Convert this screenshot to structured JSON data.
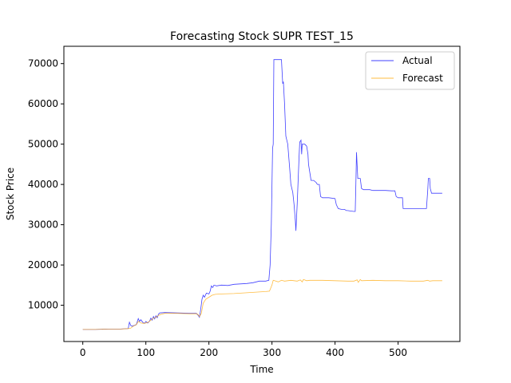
{
  "chart_data": {
    "type": "line",
    "title": "Forecasting Stock SUPR TEST_15",
    "xlabel": "Time",
    "ylabel": "Stock Price",
    "xlim": [
      -30,
      598
    ],
    "ylim": [
      1000,
      74300
    ],
    "xticks": [
      0,
      100,
      200,
      300,
      400,
      500
    ],
    "yticks": [
      10000,
      20000,
      30000,
      40000,
      50000,
      60000,
      70000
    ],
    "grid": false,
    "legend_position": "top-right",
    "series": [
      {
        "name": "Actual",
        "color": "#0000ff",
        "points": [
          [
            0,
            4000
          ],
          [
            20,
            4000
          ],
          [
            40,
            4100
          ],
          [
            60,
            4100
          ],
          [
            72,
            4200
          ],
          [
            74,
            5800
          ],
          [
            76,
            5000
          ],
          [
            78,
            4800
          ],
          [
            82,
            5000
          ],
          [
            85,
            5200
          ],
          [
            88,
            6700
          ],
          [
            90,
            6000
          ],
          [
            92,
            6400
          ],
          [
            95,
            5800
          ],
          [
            98,
            5500
          ],
          [
            100,
            6000
          ],
          [
            103,
            5600
          ],
          [
            106,
            6100
          ],
          [
            108,
            6800
          ],
          [
            110,
            6300
          ],
          [
            112,
            7200
          ],
          [
            114,
            6600
          ],
          [
            116,
            7400
          ],
          [
            118,
            6900
          ],
          [
            120,
            7800
          ],
          [
            122,
            8100
          ],
          [
            130,
            8200
          ],
          [
            150,
            8100
          ],
          [
            170,
            8000
          ],
          [
            180,
            8000
          ],
          [
            183,
            7500
          ],
          [
            185,
            7000
          ],
          [
            187,
            9000
          ],
          [
            189,
            11500
          ],
          [
            191,
            12500
          ],
          [
            193,
            12000
          ],
          [
            196,
            13000
          ],
          [
            200,
            12800
          ],
          [
            202,
            13500
          ],
          [
            204,
            14800
          ],
          [
            206,
            14400
          ],
          [
            208,
            15000
          ],
          [
            212,
            14800
          ],
          [
            220,
            15000
          ],
          [
            230,
            14900
          ],
          [
            240,
            15200
          ],
          [
            250,
            15300
          ],
          [
            260,
            15400
          ],
          [
            270,
            15600
          ],
          [
            280,
            16000
          ],
          [
            290,
            16000
          ],
          [
            295,
            16200
          ],
          [
            297,
            20000
          ],
          [
            299,
            30000
          ],
          [
            301,
            49000
          ],
          [
            302,
            50000
          ],
          [
            303,
            71000
          ],
          [
            305,
            71000
          ],
          [
            310,
            71000
          ],
          [
            315,
            71000
          ],
          [
            317,
            65000
          ],
          [
            318,
            65500
          ],
          [
            320,
            60000
          ],
          [
            322,
            52000
          ],
          [
            325,
            50000
          ],
          [
            328,
            44000
          ],
          [
            330,
            40000
          ],
          [
            333,
            38000
          ],
          [
            335,
            35000
          ],
          [
            337,
            31000
          ],
          [
            338,
            28500
          ],
          [
            340,
            35000
          ],
          [
            342,
            43000
          ],
          [
            343,
            47000
          ],
          [
            344,
            50500
          ],
          [
            346,
            51000
          ],
          [
            347,
            47500
          ],
          [
            348,
            50000
          ],
          [
            352,
            50000
          ],
          [
            355,
            49500
          ],
          [
            357,
            47500
          ],
          [
            358,
            45000
          ],
          [
            360,
            43000
          ],
          [
            362,
            41000
          ],
          [
            366,
            41000
          ],
          [
            370,
            40500
          ],
          [
            372,
            40000
          ],
          [
            375,
            40000
          ],
          [
            377,
            37000
          ],
          [
            380,
            36700
          ],
          [
            390,
            36700
          ],
          [
            400,
            36500
          ],
          [
            402,
            35000
          ],
          [
            405,
            34000
          ],
          [
            410,
            33800
          ],
          [
            415,
            33800
          ],
          [
            418,
            33500
          ],
          [
            420,
            33500
          ],
          [
            425,
            33400
          ],
          [
            430,
            33300
          ],
          [
            432,
            33300
          ],
          [
            433,
            40000
          ],
          [
            434,
            48000
          ],
          [
            436,
            41500
          ],
          [
            440,
            41500
          ],
          [
            442,
            39000
          ],
          [
            445,
            38700
          ],
          [
            455,
            38700
          ],
          [
            460,
            38500
          ],
          [
            470,
            38500
          ],
          [
            480,
            38500
          ],
          [
            490,
            38400
          ],
          [
            495,
            38400
          ],
          [
            497,
            37000
          ],
          [
            500,
            36700
          ],
          [
            507,
            36700
          ],
          [
            508,
            34000
          ],
          [
            520,
            34000
          ],
          [
            530,
            34000
          ],
          [
            540,
            34000
          ],
          [
            545,
            34000
          ],
          [
            547,
            38500
          ],
          [
            548,
            41500
          ],
          [
            550,
            41500
          ],
          [
            551,
            39000
          ],
          [
            553,
            37800
          ],
          [
            560,
            37800
          ],
          [
            570,
            37800
          ]
        ]
      },
      {
        "name": "Forecast",
        "color": "#ffa500",
        "points": [
          [
            0,
            4000
          ],
          [
            20,
            4000
          ],
          [
            40,
            4100
          ],
          [
            60,
            4100
          ],
          [
            72,
            4200
          ],
          [
            76,
            4300
          ],
          [
            80,
            4800
          ],
          [
            85,
            5200
          ],
          [
            88,
            6000
          ],
          [
            92,
            5600
          ],
          [
            96,
            5500
          ],
          [
            100,
            5600
          ],
          [
            104,
            5800
          ],
          [
            108,
            6300
          ],
          [
            112,
            6800
          ],
          [
            116,
            7000
          ],
          [
            120,
            7500
          ],
          [
            125,
            7800
          ],
          [
            130,
            8000
          ],
          [
            150,
            8000
          ],
          [
            170,
            7900
          ],
          [
            180,
            7900
          ],
          [
            183,
            7700
          ],
          [
            185,
            7200
          ],
          [
            188,
            8000
          ],
          [
            191,
            10500
          ],
          [
            195,
            11500
          ],
          [
            200,
            12000
          ],
          [
            205,
            12500
          ],
          [
            210,
            12700
          ],
          [
            220,
            12800
          ],
          [
            240,
            12900
          ],
          [
            250,
            13000
          ],
          [
            260,
            13100
          ],
          [
            270,
            13200
          ],
          [
            280,
            13300
          ],
          [
            290,
            13400
          ],
          [
            296,
            13500
          ],
          [
            300,
            15000
          ],
          [
            302,
            16200
          ],
          [
            306,
            16000
          ],
          [
            310,
            15800
          ],
          [
            315,
            16200
          ],
          [
            320,
            16000
          ],
          [
            330,
            16200
          ],
          [
            340,
            16000
          ],
          [
            345,
            16300
          ],
          [
            348,
            15800
          ],
          [
            350,
            16400
          ],
          [
            355,
            16100
          ],
          [
            360,
            16200
          ],
          [
            380,
            16200
          ],
          [
            400,
            16100
          ],
          [
            420,
            16000
          ],
          [
            430,
            16000
          ],
          [
            435,
            16300
          ],
          [
            437,
            15700
          ],
          [
            440,
            16400
          ],
          [
            442,
            16100
          ],
          [
            460,
            16200
          ],
          [
            480,
            16100
          ],
          [
            500,
            16100
          ],
          [
            520,
            16000
          ],
          [
            540,
            16000
          ],
          [
            547,
            16200
          ],
          [
            550,
            16000
          ],
          [
            555,
            16100
          ],
          [
            570,
            16100
          ]
        ]
      }
    ]
  }
}
